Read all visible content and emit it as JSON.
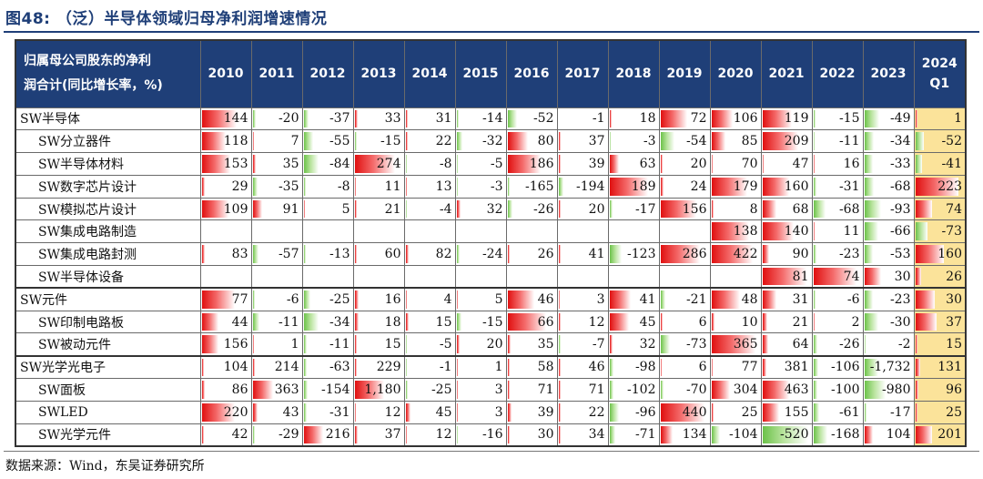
{
  "figure": {
    "title": "图48: （泛）半导体领域归母净利润增速情况",
    "source": "数据来源：Wind，东吴证券研究所"
  },
  "table": {
    "header_label_line1": "归属母公司股东的净利",
    "header_label_line2": "润合计(同比增长率，%)",
    "years": [
      "2010",
      "2011",
      "2012",
      "2013",
      "2014",
      "2015",
      "2016",
      "2017",
      "2018",
      "2019",
      "2020",
      "2021",
      "2022",
      "2023",
      "2024Q1"
    ],
    "colors": {
      "header_bg": "#1f3f78",
      "positive_bar": "#e01010",
      "negative_bar": "#6cc24a",
      "highlight_col": "#fbe39a"
    },
    "rows": [
      {
        "name": "SW半导体",
        "sub": false,
        "vals": [
          "144",
          "-20",
          "-37",
          "33",
          "31",
          "-14",
          "-52",
          "-1",
          "18",
          "72",
          "106",
          "119",
          "-15",
          "-49",
          "1"
        ],
        "bars": [
          0.72,
          -0.06,
          -0.1,
          0.06,
          0.04,
          -0.04,
          -0.2,
          -0.01,
          0.05,
          0.55,
          0.45,
          0.62,
          -0.05,
          -0.32,
          0.04
        ]
      },
      {
        "name": "SW分立器件",
        "sub": true,
        "vals": [
          "118",
          "7",
          "-55",
          "-15",
          "22",
          "-32",
          "80",
          "37",
          "-3",
          "-54",
          "85",
          "209",
          "-11",
          "-34",
          "-52"
        ],
        "bars": [
          0.5,
          0.03,
          -0.2,
          -0.05,
          0.05,
          -0.12,
          0.42,
          0.04,
          -0.02,
          -0.3,
          0.3,
          0.75,
          -0.03,
          -0.2,
          -0.18
        ]
      },
      {
        "name": "SW半导体材料",
        "sub": true,
        "vals": [
          "153",
          "35",
          "-84",
          "274",
          "-8",
          "-5",
          "186",
          "39",
          "63",
          "20",
          "70",
          "47",
          "16",
          "-33",
          "-41"
        ],
        "bars": [
          0.6,
          0.06,
          -0.32,
          0.85,
          -0.03,
          -0.02,
          0.7,
          0.04,
          0.2,
          0.04,
          0.03,
          0.03,
          0.02,
          -0.18,
          -0.15
        ]
      },
      {
        "name": "SW数字芯片设计",
        "sub": true,
        "vals": [
          "29",
          "-35",
          "-8",
          "11",
          "13",
          "-3",
          "-165",
          "-194",
          "189",
          "24",
          "179",
          "160",
          "-31",
          "-68",
          "223"
        ],
        "bars": [
          0.06,
          -0.1,
          -0.04,
          0.03,
          0.03,
          -0.02,
          -0.05,
          -0.1,
          0.8,
          0.06,
          0.75,
          0.55,
          -0.06,
          -0.2,
          0.9
        ]
      },
      {
        "name": "SW模拟芯片设计",
        "sub": true,
        "vals": [
          "109",
          "91",
          "5",
          "21",
          "-4",
          "32",
          "-26",
          "20",
          "-17",
          "156",
          "8",
          "68",
          "-68",
          "-93",
          "74"
        ],
        "bars": [
          0.55,
          0.2,
          0.02,
          0.04,
          -0.02,
          0.08,
          -0.1,
          0.04,
          -0.06,
          0.75,
          0.04,
          0.3,
          -0.25,
          -0.35,
          0.35
        ]
      },
      {
        "name": "SW集成电路制造",
        "sub": true,
        "vals": [
          "",
          "",
          "",
          "",
          "",
          "",
          "",
          "",
          "",
          "",
          "138",
          "140",
          "11",
          "-66",
          "-73"
        ],
        "bars": [
          0,
          0,
          0,
          0,
          0,
          0,
          0,
          0,
          0,
          0,
          0.78,
          0.66,
          0.03,
          -0.3,
          -0.25
        ]
      },
      {
        "name": "SW集成电路封测",
        "sub": true,
        "vals": [
          "83",
          "-57",
          "-13",
          "60",
          "82",
          "-24",
          "26",
          "41",
          "-123",
          "286",
          "422",
          "90",
          "-23",
          "-53",
          "160"
        ],
        "bars": [
          0.06,
          -0.12,
          -0.04,
          0.05,
          0.06,
          -0.06,
          0.04,
          0.05,
          -0.25,
          0.82,
          0.86,
          0.15,
          -0.07,
          -0.18,
          0.6
        ]
      },
      {
        "name": "SW半导体设备",
        "sub": true,
        "vals": [
          "",
          "",
          "",
          "",
          "",
          "",
          "",
          "",
          "",
          "",
          "",
          "81",
          "74",
          "30",
          "26"
        ],
        "bars": [
          0,
          0,
          0,
          0,
          0,
          0,
          0,
          0,
          0,
          0,
          0,
          0.92,
          0.9,
          0.35,
          0.12
        ]
      },
      {
        "name": "SW元件",
        "sub": false,
        "vals": [
          "77",
          "-6",
          "-25",
          "16",
          "4",
          "5",
          "46",
          "3",
          "41",
          "-21",
          "48",
          "31",
          "-6",
          "-23",
          "30"
        ],
        "bars": [
          0.7,
          -0.05,
          -0.15,
          0.08,
          0.03,
          0.03,
          0.55,
          0.03,
          0.45,
          -0.1,
          0.6,
          0.3,
          -0.04,
          -0.18,
          0.4
        ]
      },
      {
        "name": "SW印制电路板",
        "sub": true,
        "vals": [
          "44",
          "-11",
          "-34",
          "18",
          "15",
          "-15",
          "66",
          "12",
          "45",
          "6",
          "10",
          "21",
          "2",
          "-30",
          "37"
        ],
        "bars": [
          0.35,
          -0.15,
          -0.32,
          0.08,
          0.06,
          -0.1,
          0.8,
          0.05,
          0.4,
          0.04,
          0.07,
          0.1,
          0.03,
          -0.3,
          0.45
        ]
      },
      {
        "name": "SW被动元件",
        "sub": true,
        "vals": [
          "156",
          "1",
          "-11",
          "15",
          "-5",
          "20",
          "35",
          "-7",
          "32",
          "-73",
          "365",
          "64",
          "-26",
          "-2",
          "15"
        ],
        "bars": [
          0.35,
          0.02,
          -0.06,
          0.05,
          -0.03,
          0.06,
          0.06,
          -0.04,
          0.06,
          -0.2,
          0.92,
          0.12,
          -0.08,
          -0.02,
          0.05
        ]
      },
      {
        "name": "SW光学光电子",
        "sub": false,
        "vals": [
          "104",
          "214",
          "-63",
          "229",
          "-1",
          "1",
          "58",
          "46",
          "-98",
          "6",
          "77",
          "381",
          "-106",
          "-1,732",
          "131"
        ],
        "bars": [
          0.05,
          0.05,
          -0.06,
          0.05,
          -0.02,
          0.02,
          0.04,
          0.04,
          -0.08,
          0.02,
          0.03,
          0.08,
          -0.1,
          -0.3,
          0.1
        ]
      },
      {
        "name": "SW面板",
        "sub": true,
        "vals": [
          "86",
          "363",
          "-154",
          "1,180",
          "-25",
          "3",
          "71",
          "71",
          "-102",
          "-70",
          "304",
          "463",
          "-100",
          "-980",
          "96"
        ],
        "bars": [
          0.06,
          0.42,
          -0.08,
          0.62,
          -0.04,
          0.02,
          0.04,
          0.04,
          -0.08,
          -0.06,
          0.38,
          0.55,
          -0.08,
          -0.45,
          0.06
        ]
      },
      {
        "name": "SWLED",
        "sub": true,
        "vals": [
          "220",
          "43",
          "-31",
          "12",
          "45",
          "3",
          "39",
          "22",
          "-96",
          "440",
          "25",
          "155",
          "-61",
          "-17",
          "25"
        ],
        "bars": [
          0.7,
          0.1,
          -0.06,
          0.03,
          0.1,
          0.02,
          0.08,
          0.05,
          -0.2,
          0.92,
          0.05,
          0.35,
          -0.12,
          -0.04,
          0.05
        ]
      },
      {
        "name": "SW光学元件",
        "sub": true,
        "vals": [
          "42",
          "-29",
          "216",
          "37",
          "12",
          "-16",
          "30",
          "34",
          "-71",
          "134",
          "-104",
          "-520",
          "-168",
          "104",
          "201"
        ],
        "bars": [
          0.05,
          -0.05,
          0.4,
          0.06,
          0.03,
          -0.03,
          0.05,
          0.05,
          -0.12,
          0.25,
          -0.18,
          -0.95,
          -0.3,
          0.18,
          0.35
        ]
      }
    ]
  }
}
